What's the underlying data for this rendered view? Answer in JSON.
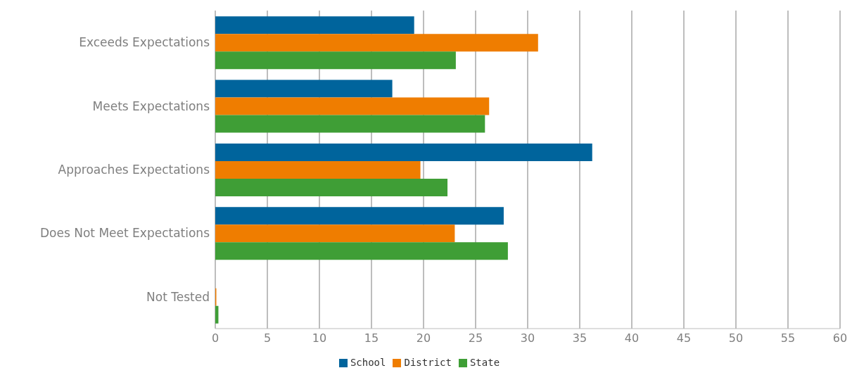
{
  "chart_data": {
    "type": "bar",
    "orientation": "horizontal",
    "categories": [
      "Exceeds Expectations",
      "Meets Expectations",
      "Approaches Expectations",
      "Does Not Meet Expectations",
      "Not Tested"
    ],
    "series": [
      {
        "name": "School",
        "color": "#00649c",
        "values": [
          19.1,
          17.0,
          36.2,
          27.7,
          0
        ]
      },
      {
        "name": "District",
        "color": "#ef7d00",
        "values": [
          31.0,
          26.3,
          19.7,
          23.0,
          0.1
        ]
      },
      {
        "name": "State",
        "color": "#3f9e36",
        "values": [
          23.1,
          25.9,
          22.3,
          28.1,
          0.3
        ]
      }
    ],
    "xlim": [
      0,
      60
    ],
    "xticks": [
      0,
      5,
      10,
      15,
      20,
      25,
      30,
      35,
      40,
      45,
      50,
      55,
      60
    ],
    "grid": "x",
    "legend": "bottom"
  }
}
